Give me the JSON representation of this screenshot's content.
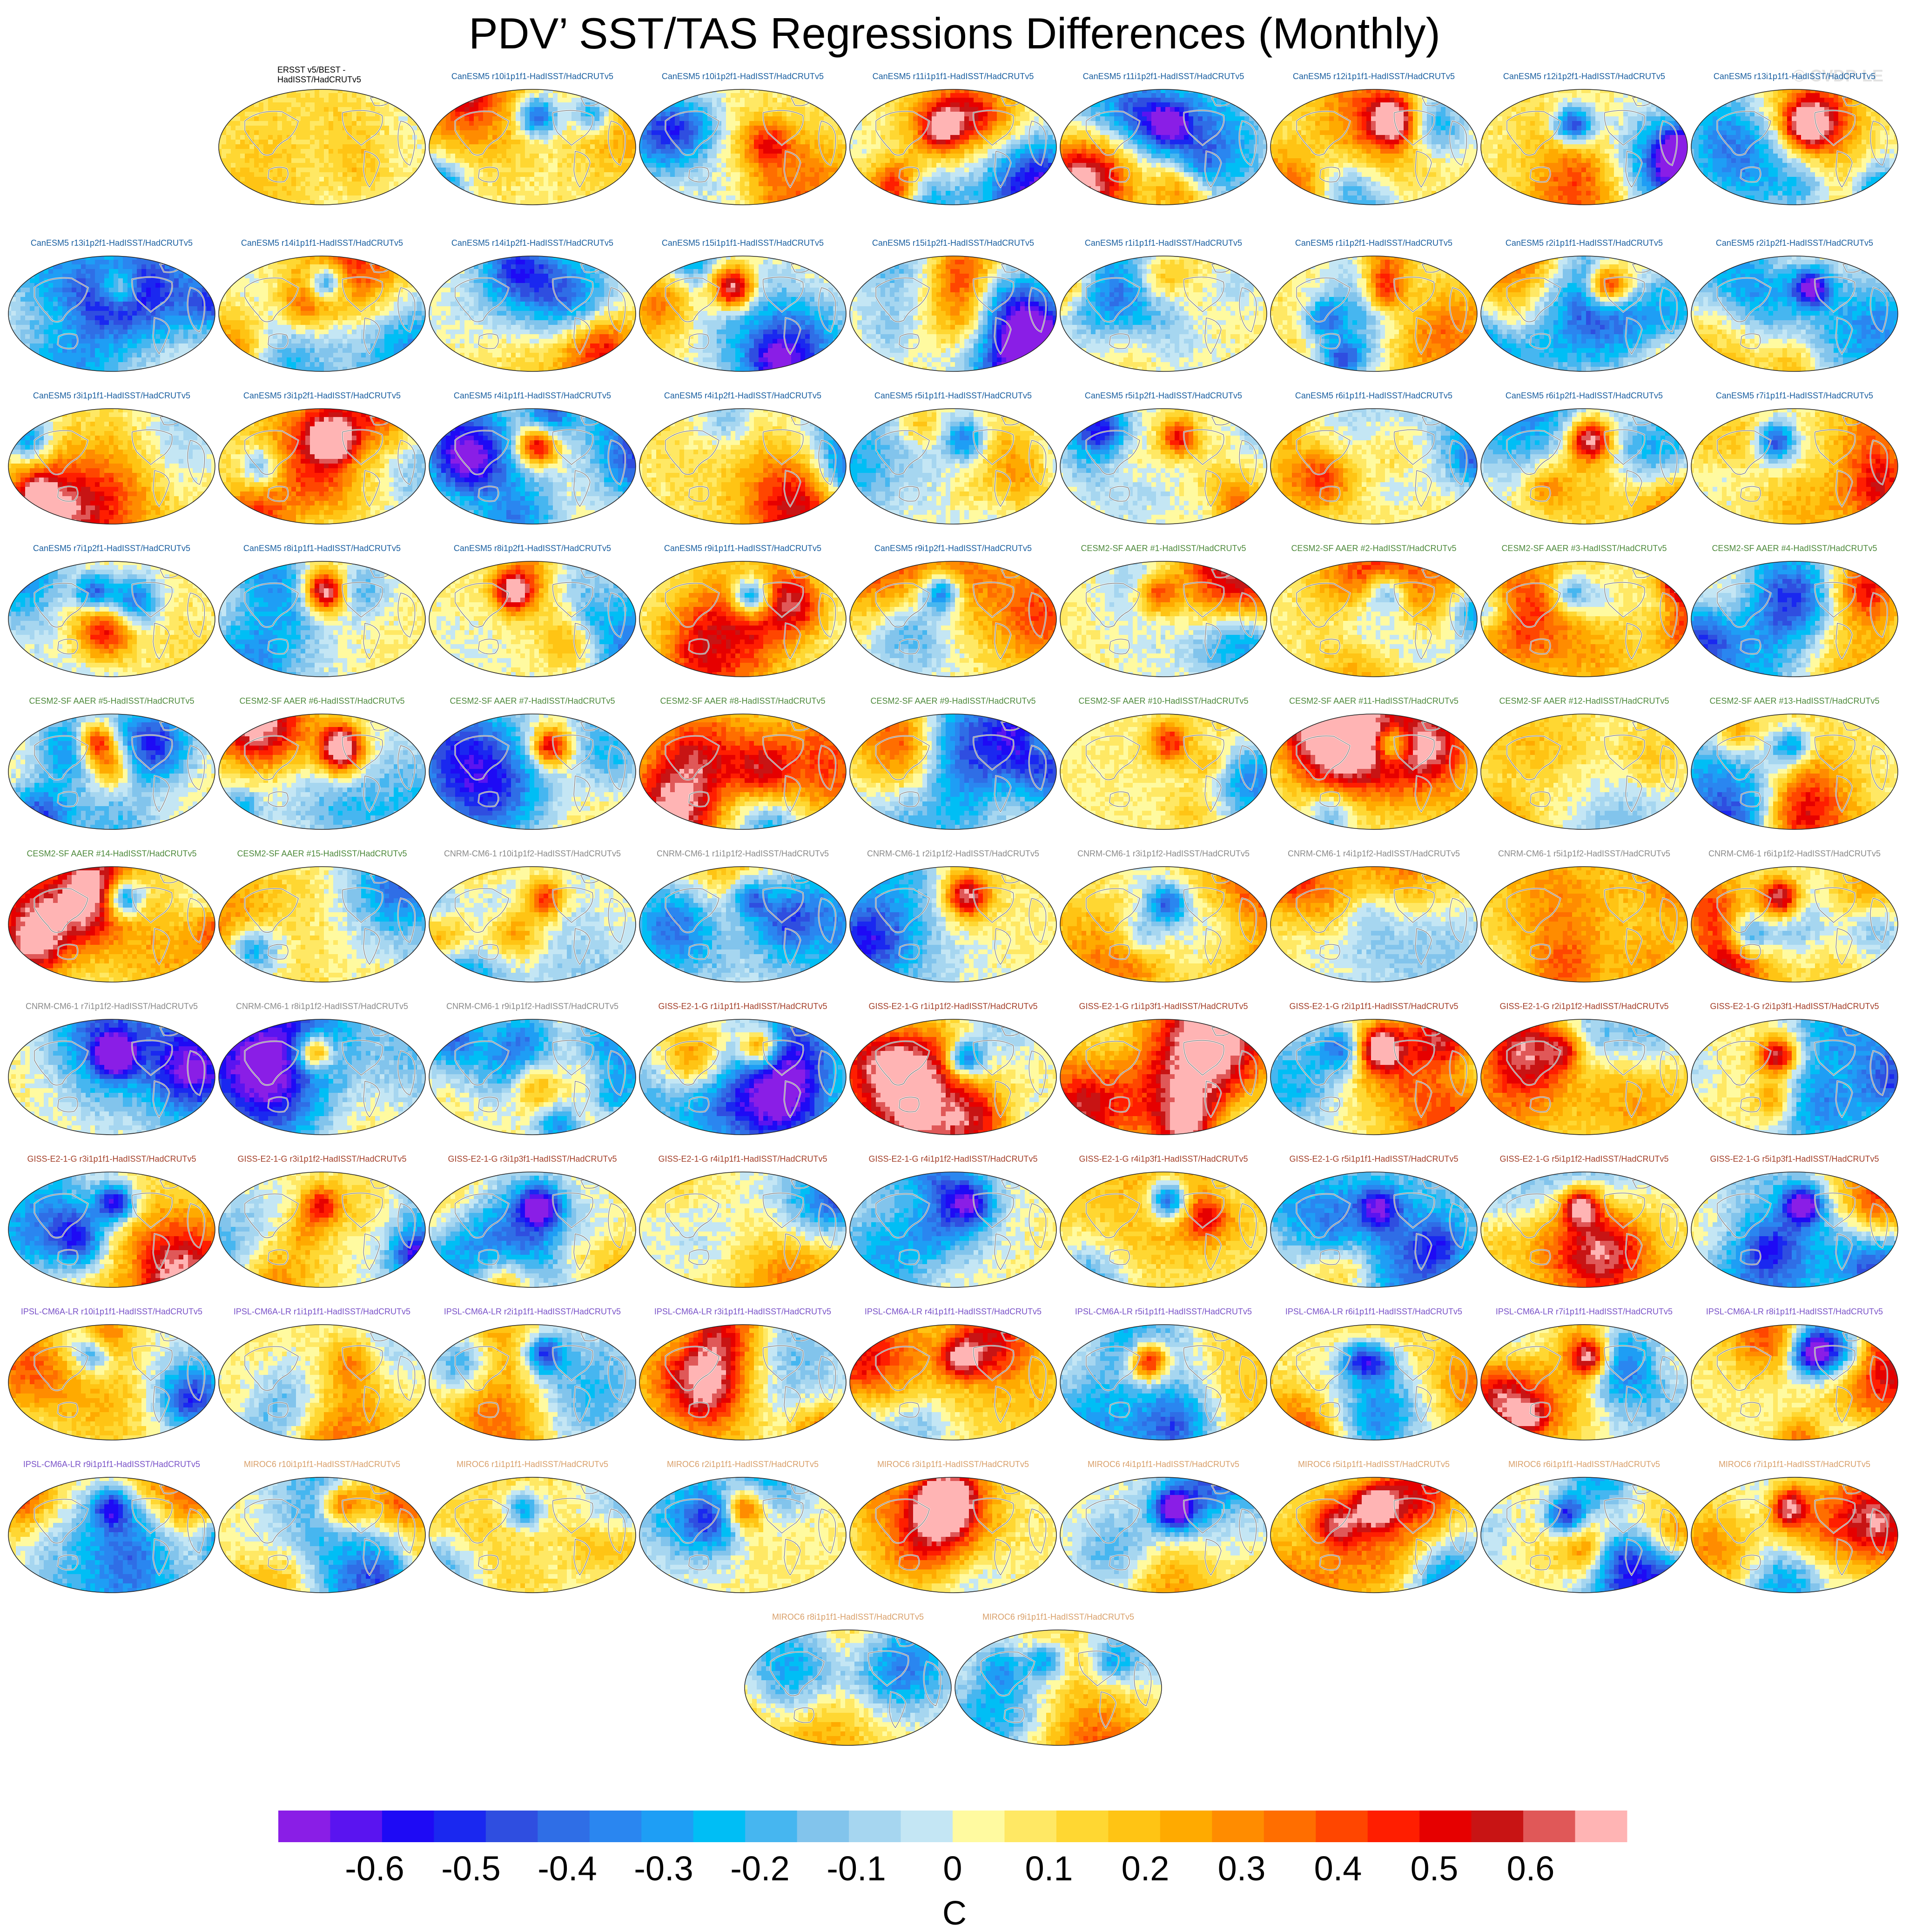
{
  "title": "PDV’ SST/TAS Regressions Differences (Monthly)",
  "credit": "© CVDP-LE",
  "panel_colors": {
    "obs": "#000000",
    "CanESM5": "#1a5fa0",
    "CESM2-SF AAER": "#4e8a3c",
    "CNRM-CM6-1": "#8a8a8a",
    "GISS-E2-1-G": "#a4402a",
    "IPSL-CM6A-LR": "#7a52c8",
    "MIROC6": "#d9a06a"
  },
  "chart_data": {
    "type": "heatmap",
    "title": "PDV’ SST/TAS Regressions Differences (Monthly)",
    "map_projection": "robinson-like global maps, Pacific-centered",
    "grid": false,
    "panels": [
      {
        "label": "ERSST v5/BEST - HadISST/HadCRUTv5",
        "group": "obs"
      },
      {
        "label": "CanESM5 r10i1p1f1-HadISST/HadCRUTv5",
        "group": "CanESM5"
      },
      {
        "label": "CanESM5 r10i1p2f1-HadISST/HadCRUTv5",
        "group": "CanESM5"
      },
      {
        "label": "CanESM5 r11i1p1f1-HadISST/HadCRUTv5",
        "group": "CanESM5"
      },
      {
        "label": "CanESM5 r11i1p2f1-HadISST/HadCRUTv5",
        "group": "CanESM5"
      },
      {
        "label": "CanESM5 r12i1p1f1-HadISST/HadCRUTv5",
        "group": "CanESM5"
      },
      {
        "label": "CanESM5 r12i1p2f1-HadISST/HadCRUTv5",
        "group": "CanESM5"
      },
      {
        "label": "CanESM5 r13i1p1f1-HadISST/HadCRUTv5",
        "group": "CanESM5"
      },
      {
        "label": "CanESM5 r13i1p2f1-HadISST/HadCRUTv5",
        "group": "CanESM5"
      },
      {
        "label": "CanESM5 r14i1p1f1-HadISST/HadCRUTv5",
        "group": "CanESM5"
      },
      {
        "label": "CanESM5 r14i1p2f1-HadISST/HadCRUTv5",
        "group": "CanESM5"
      },
      {
        "label": "CanESM5 r15i1p1f1-HadISST/HadCRUTv5",
        "group": "CanESM5"
      },
      {
        "label": "CanESM5 r15i1p2f1-HadISST/HadCRUTv5",
        "group": "CanESM5"
      },
      {
        "label": "CanESM5 r1i1p1f1-HadISST/HadCRUTv5",
        "group": "CanESM5"
      },
      {
        "label": "CanESM5 r1i1p2f1-HadISST/HadCRUTv5",
        "group": "CanESM5"
      },
      {
        "label": "CanESM5 r2i1p1f1-HadISST/HadCRUTv5",
        "group": "CanESM5"
      },
      {
        "label": "CanESM5 r2i1p2f1-HadISST/HadCRUTv5",
        "group": "CanESM5"
      },
      {
        "label": "CanESM5 r3i1p1f1-HadISST/HadCRUTv5",
        "group": "CanESM5"
      },
      {
        "label": "CanESM5 r3i1p2f1-HadISST/HadCRUTv5",
        "group": "CanESM5"
      },
      {
        "label": "CanESM5 r4i1p1f1-HadISST/HadCRUTv5",
        "group": "CanESM5"
      },
      {
        "label": "CanESM5 r4i1p2f1-HadISST/HadCRUTv5",
        "group": "CanESM5"
      },
      {
        "label": "CanESM5 r5i1p1f1-HadISST/HadCRUTv5",
        "group": "CanESM5"
      },
      {
        "label": "CanESM5 r5i1p2f1-HadISST/HadCRUTv5",
        "group": "CanESM5"
      },
      {
        "label": "CanESM5 r6i1p1f1-HadISST/HadCRUTv5",
        "group": "CanESM5"
      },
      {
        "label": "CanESM5 r6i1p2f1-HadISST/HadCRUTv5",
        "group": "CanESM5"
      },
      {
        "label": "CanESM5 r7i1p1f1-HadISST/HadCRUTv5",
        "group": "CanESM5"
      },
      {
        "label": "CanESM5 r7i1p2f1-HadISST/HadCRUTv5",
        "group": "CanESM5"
      },
      {
        "label": "CanESM5 r8i1p1f1-HadISST/HadCRUTv5",
        "group": "CanESM5"
      },
      {
        "label": "CanESM5 r8i1p2f1-HadISST/HadCRUTv5",
        "group": "CanESM5"
      },
      {
        "label": "CanESM5 r9i1p1f1-HadISST/HadCRUTv5",
        "group": "CanESM5"
      },
      {
        "label": "CanESM5 r9i1p2f1-HadISST/HadCRUTv5",
        "group": "CanESM5"
      },
      {
        "label": "CESM2-SF AAER #1-HadISST/HadCRUTv5",
        "group": "CESM2-SF AAER"
      },
      {
        "label": "CESM2-SF AAER #2-HadISST/HadCRUTv5",
        "group": "CESM2-SF AAER"
      },
      {
        "label": "CESM2-SF AAER #3-HadISST/HadCRUTv5",
        "group": "CESM2-SF AAER"
      },
      {
        "label": "CESM2-SF AAER #4-HadISST/HadCRUTv5",
        "group": "CESM2-SF AAER"
      },
      {
        "label": "CESM2-SF AAER #5-HadISST/HadCRUTv5",
        "group": "CESM2-SF AAER"
      },
      {
        "label": "CESM2-SF AAER #6-HadISST/HadCRUTv5",
        "group": "CESM2-SF AAER"
      },
      {
        "label": "CESM2-SF AAER #7-HadISST/HadCRUTv5",
        "group": "CESM2-SF AAER"
      },
      {
        "label": "CESM2-SF AAER #8-HadISST/HadCRUTv5",
        "group": "CESM2-SF AAER"
      },
      {
        "label": "CESM2-SF AAER #9-HadISST/HadCRUTv5",
        "group": "CESM2-SF AAER"
      },
      {
        "label": "CESM2-SF AAER #10-HadISST/HadCRUTv5",
        "group": "CESM2-SF AAER"
      },
      {
        "label": "CESM2-SF AAER #11-HadISST/HadCRUTv5",
        "group": "CESM2-SF AAER"
      },
      {
        "label": "CESM2-SF AAER #12-HadISST/HadCRUTv5",
        "group": "CESM2-SF AAER"
      },
      {
        "label": "CESM2-SF AAER #13-HadISST/HadCRUTv5",
        "group": "CESM2-SF AAER"
      },
      {
        "label": "CESM2-SF AAER #14-HadISST/HadCRUTv5",
        "group": "CESM2-SF AAER"
      },
      {
        "label": "CESM2-SF AAER #15-HadISST/HadCRUTv5",
        "group": "CESM2-SF AAER"
      },
      {
        "label": "CNRM-CM6-1 r10i1p1f2-HadISST/HadCRUTv5",
        "group": "CNRM-CM6-1"
      },
      {
        "label": "CNRM-CM6-1 r1i1p1f2-HadISST/HadCRUTv5",
        "group": "CNRM-CM6-1"
      },
      {
        "label": "CNRM-CM6-1 r2i1p1f2-HadISST/HadCRUTv5",
        "group": "CNRM-CM6-1"
      },
      {
        "label": "CNRM-CM6-1 r3i1p1f2-HadISST/HadCRUTv5",
        "group": "CNRM-CM6-1"
      },
      {
        "label": "CNRM-CM6-1 r4i1p1f2-HadISST/HadCRUTv5",
        "group": "CNRM-CM6-1"
      },
      {
        "label": "CNRM-CM6-1 r5i1p1f2-HadISST/HadCRUTv5",
        "group": "CNRM-CM6-1"
      },
      {
        "label": "CNRM-CM6-1 r6i1p1f2-HadISST/HadCRUTv5",
        "group": "CNRM-CM6-1"
      },
      {
        "label": "CNRM-CM6-1 r7i1p1f2-HadISST/HadCRUTv5",
        "group": "CNRM-CM6-1"
      },
      {
        "label": "CNRM-CM6-1 r8i1p1f2-HadISST/HadCRUTv5",
        "group": "CNRM-CM6-1"
      },
      {
        "label": "CNRM-CM6-1 r9i1p1f2-HadISST/HadCRUTv5",
        "group": "CNRM-CM6-1"
      },
      {
        "label": "GISS-E2-1-G r1i1p1f1-HadISST/HadCRUTv5",
        "group": "GISS-E2-1-G"
      },
      {
        "label": "GISS-E2-1-G r1i1p1f2-HadISST/HadCRUTv5",
        "group": "GISS-E2-1-G"
      },
      {
        "label": "GISS-E2-1-G r1i1p3f1-HadISST/HadCRUTv5",
        "group": "GISS-E2-1-G"
      },
      {
        "label": "GISS-E2-1-G r2i1p1f1-HadISST/HadCRUTv5",
        "group": "GISS-E2-1-G"
      },
      {
        "label": "GISS-E2-1-G r2i1p1f2-HadISST/HadCRUTv5",
        "group": "GISS-E2-1-G"
      },
      {
        "label": "GISS-E2-1-G r2i1p3f1-HadISST/HadCRUTv5",
        "group": "GISS-E2-1-G"
      },
      {
        "label": "GISS-E2-1-G r3i1p1f1-HadISST/HadCRUTv5",
        "group": "GISS-E2-1-G"
      },
      {
        "label": "GISS-E2-1-G r3i1p1f2-HadISST/HadCRUTv5",
        "group": "GISS-E2-1-G"
      },
      {
        "label": "GISS-E2-1-G r3i1p3f1-HadISST/HadCRUTv5",
        "group": "GISS-E2-1-G"
      },
      {
        "label": "GISS-E2-1-G r4i1p1f1-HadISST/HadCRUTv5",
        "group": "GISS-E2-1-G"
      },
      {
        "label": "GISS-E2-1-G r4i1p1f2-HadISST/HadCRUTv5",
        "group": "GISS-E2-1-G"
      },
      {
        "label": "GISS-E2-1-G r4i1p3f1-HadISST/HadCRUTv5",
        "group": "GISS-E2-1-G"
      },
      {
        "label": "GISS-E2-1-G r5i1p1f1-HadISST/HadCRUTv5",
        "group": "GISS-E2-1-G"
      },
      {
        "label": "GISS-E2-1-G r5i1p1f2-HadISST/HadCRUTv5",
        "group": "GISS-E2-1-G"
      },
      {
        "label": "GISS-E2-1-G r5i1p3f1-HadISST/HadCRUTv5",
        "group": "GISS-E2-1-G"
      },
      {
        "label": "IPSL-CM6A-LR r10i1p1f1-HadISST/HadCRUTv5",
        "group": "IPSL-CM6A-LR"
      },
      {
        "label": "IPSL-CM6A-LR r1i1p1f1-HadISST/HadCRUTv5",
        "group": "IPSL-CM6A-LR"
      },
      {
        "label": "IPSL-CM6A-LR r2i1p1f1-HadISST/HadCRUTv5",
        "group": "IPSL-CM6A-LR"
      },
      {
        "label": "IPSL-CM6A-LR r3i1p1f1-HadISST/HadCRUTv5",
        "group": "IPSL-CM6A-LR"
      },
      {
        "label": "IPSL-CM6A-LR r4i1p1f1-HadISST/HadCRUTv5",
        "group": "IPSL-CM6A-LR"
      },
      {
        "label": "IPSL-CM6A-LR r5i1p1f1-HadISST/HadCRUTv5",
        "group": "IPSL-CM6A-LR"
      },
      {
        "label": "IPSL-CM6A-LR r6i1p1f1-HadISST/HadCRUTv5",
        "group": "IPSL-CM6A-LR"
      },
      {
        "label": "IPSL-CM6A-LR r7i1p1f1-HadISST/HadCRUTv5",
        "group": "IPSL-CM6A-LR"
      },
      {
        "label": "IPSL-CM6A-LR r8i1p1f1-HadISST/HadCRUTv5",
        "group": "IPSL-CM6A-LR"
      },
      {
        "label": "IPSL-CM6A-LR r9i1p1f1-HadISST/HadCRUTv5",
        "group": "IPSL-CM6A-LR"
      },
      {
        "label": "MIROC6 r10i1p1f1-HadISST/HadCRUTv5",
        "group": "MIROC6"
      },
      {
        "label": "MIROC6 r1i1p1f1-HadISST/HadCRUTv5",
        "group": "MIROC6"
      },
      {
        "label": "MIROC6 r2i1p1f1-HadISST/HadCRUTv5",
        "group": "MIROC6"
      },
      {
        "label": "MIROC6 r3i1p1f1-HadISST/HadCRUTv5",
        "group": "MIROC6"
      },
      {
        "label": "MIROC6 r4i1p1f1-HadISST/HadCRUTv5",
        "group": "MIROC6"
      },
      {
        "label": "MIROC6 r5i1p1f1-HadISST/HadCRUTv5",
        "group": "MIROC6"
      },
      {
        "label": "MIROC6 r6i1p1f1-HadISST/HadCRUTv5",
        "group": "MIROC6"
      },
      {
        "label": "MIROC6 r7i1p1f1-HadISST/HadCRUTv5",
        "group": "MIROC6"
      },
      {
        "label": "MIROC6 r8i1p1f1-HadISST/HadCRUTv5",
        "group": "MIROC6"
      },
      {
        "label": "MIROC6 r9i1p1f1-HadISST/HadCRUTv5",
        "group": "MIROC6"
      }
    ],
    "colorbar": {
      "min": -0.7,
      "max": 0.7,
      "step": 0.05,
      "tick_values": [
        -0.6,
        -0.5,
        -0.4,
        -0.3,
        -0.2,
        -0.1,
        0,
        0.1,
        0.2,
        0.3,
        0.4,
        0.5,
        0.6
      ],
      "tick_labels": [
        "-0.6",
        "-0.5",
        "-0.4",
        "-0.3",
        "-0.2",
        "-0.1",
        "0",
        "0.1",
        "0.2",
        "0.3",
        "0.4",
        "0.5",
        "0.6"
      ],
      "unit": "C",
      "colors": [
        "#8a1ee6",
        "#5a14f0",
        "#1e0af5",
        "#1a28f0",
        "#2f4ee0",
        "#2f6ee6",
        "#2a86f0",
        "#1e9ef5",
        "#00bef5",
        "#46b6f0",
        "#82c4ec",
        "#a6d6f0",
        "#c4e6f4",
        "#fffaa0",
        "#ffe864",
        "#ffd732",
        "#ffc414",
        "#ffaa00",
        "#ff8c00",
        "#ff6e00",
        "#ff4600",
        "#ff1e00",
        "#e60000",
        "#c81414",
        "#e05858",
        "#ffb4b4"
      ]
    }
  }
}
